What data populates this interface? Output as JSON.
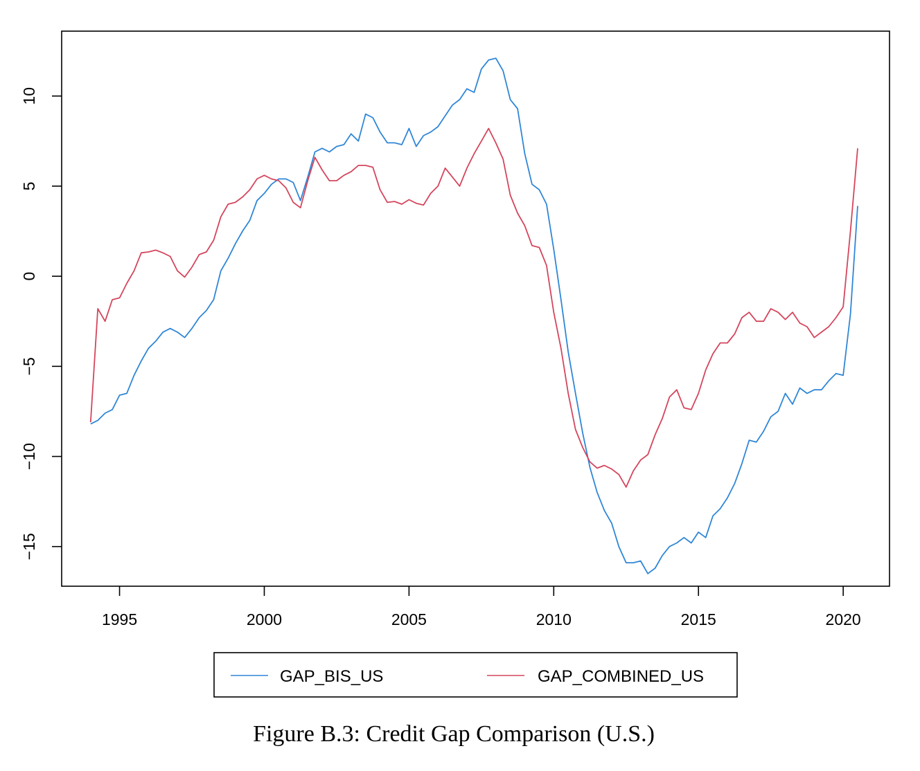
{
  "caption": "Figure B.3: Credit Gap Comparison (U.S.)",
  "chart_data": {
    "type": "line",
    "title": "",
    "xlabel": "",
    "ylabel": "",
    "xlim": [
      1993.0,
      2021.6
    ],
    "ylim": [
      -17.2,
      13.6
    ],
    "x_ticks": [
      1995,
      2000,
      2005,
      2010,
      2015,
      2020
    ],
    "y_ticks": [
      -15,
      -10,
      -5,
      0,
      5,
      10
    ],
    "grid": false,
    "legend_position": "bottom-center",
    "x_start": 1994.0,
    "x_step": 0.25,
    "series": [
      {
        "name": "GAP_BIS_US",
        "color": "#2f86d6",
        "values": [
          -8.2,
          -8.0,
          -7.6,
          -7.4,
          -6.6,
          -6.5,
          -5.5,
          -4.7,
          -4.0,
          -3.6,
          -3.1,
          -2.9,
          -3.1,
          -3.4,
          -2.9,
          -2.3,
          -1.9,
          -1.3,
          0.3,
          1.0,
          1.8,
          2.5,
          3.1,
          4.2,
          4.6,
          5.1,
          5.4,
          5.4,
          5.2,
          4.2,
          5.5,
          6.9,
          7.1,
          6.9,
          7.2,
          7.3,
          7.9,
          7.5,
          9.0,
          8.8,
          8.0,
          7.4,
          7.4,
          7.3,
          8.2,
          7.2,
          7.8,
          8.0,
          8.3,
          8.9,
          9.5,
          9.8,
          10.4,
          10.2,
          11.5,
          12.0,
          12.1,
          11.4,
          9.8,
          9.3,
          6.8,
          5.1,
          4.8,
          4.0,
          1.5,
          -1.3,
          -4.2,
          -6.5,
          -8.7,
          -10.6,
          -12.0,
          -13.0,
          -13.7,
          -15.0,
          -15.9,
          -15.9,
          -15.8,
          -16.5,
          -16.2,
          -15.5,
          -15.0,
          -14.8,
          -14.5,
          -14.8,
          -14.2,
          -14.5,
          -13.3,
          -12.9,
          -12.3,
          -11.5,
          -10.4,
          -9.1,
          -9.2,
          -8.6,
          -7.8,
          -7.5,
          -6.5,
          -7.1,
          -6.2,
          -6.5,
          -6.3,
          -6.3,
          -5.8,
          -5.4,
          -5.5,
          -2.1,
          3.9
        ]
      },
      {
        "name": "GAP_COMBINED_US",
        "color": "#d4455c",
        "values": [
          -8.1,
          -1.8,
          -2.5,
          -1.3,
          -1.2,
          -0.4,
          0.3,
          1.3,
          1.35,
          1.45,
          1.3,
          1.1,
          0.3,
          -0.05,
          0.5,
          1.2,
          1.35,
          2.0,
          3.3,
          4.0,
          4.1,
          4.4,
          4.8,
          5.4,
          5.6,
          5.4,
          5.3,
          4.9,
          4.1,
          3.8,
          5.3,
          6.6,
          5.9,
          5.3,
          5.3,
          5.6,
          5.8,
          6.15,
          6.15,
          6.05,
          4.8,
          4.1,
          4.15,
          4.0,
          4.25,
          4.05,
          3.95,
          4.6,
          5.0,
          6.0,
          5.5,
          5.0,
          6.0,
          6.8,
          7.5,
          8.2,
          7.4,
          6.5,
          4.5,
          3.5,
          2.8,
          1.7,
          1.6,
          0.6,
          -2.0,
          -4.0,
          -6.5,
          -8.5,
          -9.5,
          -10.3,
          -10.65,
          -10.5,
          -10.7,
          -11.0,
          -11.7,
          -10.8,
          -10.2,
          -9.9,
          -8.8,
          -7.9,
          -6.7,
          -6.3,
          -7.3,
          -7.4,
          -6.5,
          -5.2,
          -4.3,
          -3.7,
          -3.7,
          -3.2,
          -2.3,
          -2.0,
          -2.5,
          -2.5,
          -1.8,
          -2.0,
          -2.4,
          -2.0,
          -2.6,
          -2.8,
          -3.4,
          -3.1,
          -2.8,
          -2.3,
          -1.7,
          2.5,
          7.1
        ]
      }
    ]
  }
}
